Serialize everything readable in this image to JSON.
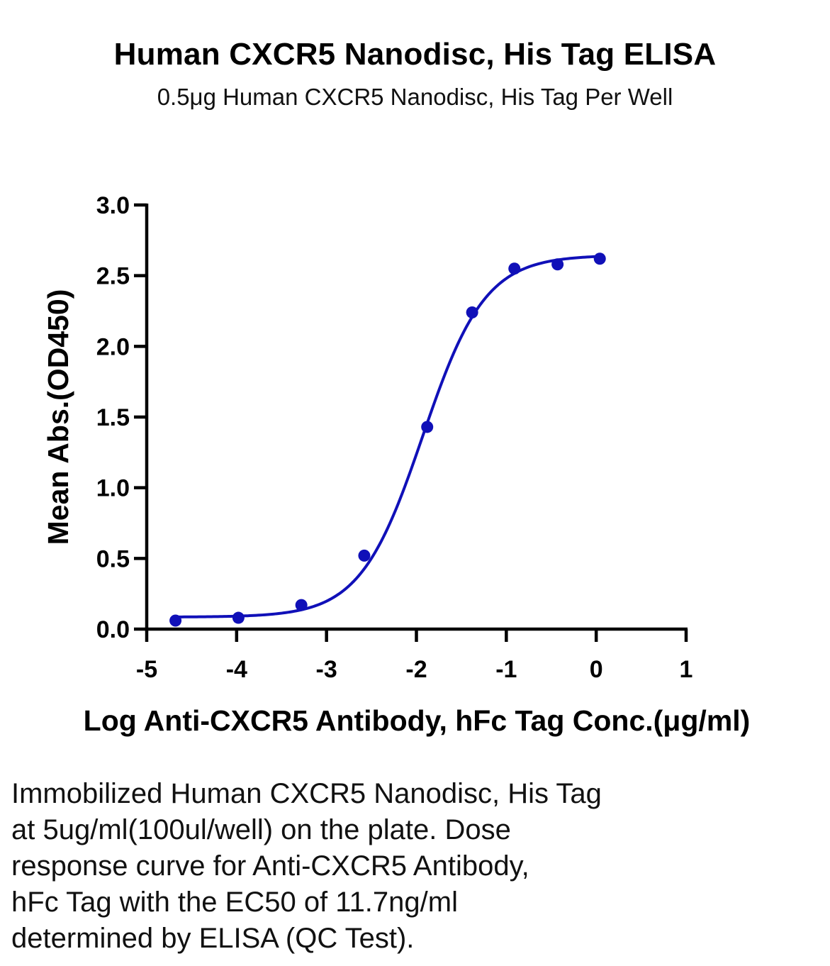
{
  "chart_data": {
    "type": "scatter",
    "title": "Human CXCR5 Nanodisc, His Tag ELISA",
    "subtitle": "0.5μg Human CXCR5 Nanodisc, His Tag Per Well",
    "xlabel": "Log Anti-CXCR5 Antibody, hFc Tag Conc.(μg/ml)",
    "ylabel": "Mean Abs.(OD450)",
    "xlim": [
      -5,
      1
    ],
    "ylim": [
      0,
      3
    ],
    "x_ticks": [
      -5,
      -4,
      -3,
      -2,
      -1,
      0,
      1
    ],
    "y_ticks": [
      0,
      0.5,
      1,
      1.5,
      2,
      2.5,
      3
    ],
    "x_tick_labels": [
      "-5",
      "-4",
      "-3",
      "-2",
      "-1",
      "0",
      "1"
    ],
    "y_tick_labels": [
      "0.0",
      "0.5",
      "1.0",
      "1.5",
      "2.0",
      "2.5",
      "3.0"
    ],
    "grid": false,
    "legend": "none",
    "series": [
      {
        "color": "#1010b8",
        "x": [
          -4.68,
          -3.98,
          -3.28,
          -2.58,
          -1.88,
          -1.38,
          -0.91,
          -0.43,
          0.04
        ],
        "y": [
          0.06,
          0.08,
          0.17,
          0.52,
          1.43,
          2.24,
          2.55,
          2.58,
          2.62
        ],
        "fit": {
          "model": "4PL",
          "bottom": 0.085,
          "top": 2.645,
          "logEC50": -1.93,
          "hill": 1.25
        }
      }
    ]
  },
  "caption": [
    "Immobilized Human CXCR5 Nanodisc, His Tag",
    "at 5ug/ml(100ul/well) on the plate. Dose",
    "response curve for Anti-CXCR5 Antibody,",
    "hFc Tag with the EC50 of 11.7ng/ml",
    "determined by ELISA (QC Test)."
  ]
}
